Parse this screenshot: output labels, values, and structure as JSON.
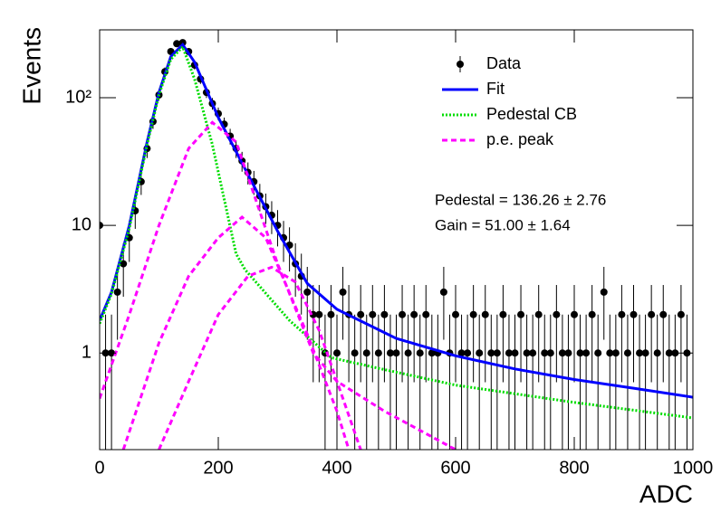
{
  "chart_data": {
    "type": "scatter",
    "x_label": "ADC",
    "y_label": "Events",
    "log_y": true,
    "xlim": [
      0,
      1000
    ],
    "xticks": [
      0,
      200,
      400,
      600,
      800,
      1000
    ],
    "ylim": [
      0.175,
      340
    ],
    "yticks": [
      1,
      10,
      {
        "value": 100,
        "label": "10²"
      }
    ],
    "legend": "top-right",
    "annotations": [
      "Pedestal = 136.26 ± 2.76",
      "Gain = 51.00 ± 1.64"
    ],
    "series": [
      {
        "name": "Data",
        "type": "errorbar",
        "color": "#000000",
        "x": [
          0,
          10,
          20,
          30,
          40,
          50,
          60,
          70,
          80,
          90,
          100,
          110,
          120,
          130,
          140,
          150,
          160,
          170,
          180,
          190,
          200,
          210,
          220,
          230,
          240,
          250,
          260,
          270,
          280,
          290,
          300,
          310,
          320,
          330,
          340,
          350,
          360,
          370,
          380,
          390,
          400,
          410,
          420,
          430,
          440,
          450,
          460,
          470,
          480,
          490,
          500,
          510,
          520,
          530,
          540,
          550,
          560,
          570,
          580,
          590,
          600,
          610,
          620,
          630,
          640,
          650,
          660,
          670,
          680,
          690,
          700,
          710,
          720,
          730,
          740,
          750,
          760,
          770,
          780,
          790,
          800,
          810,
          820,
          830,
          840,
          850,
          860,
          870,
          880,
          890,
          900,
          910,
          920,
          930,
          940,
          950,
          960,
          970,
          980,
          990
        ],
        "values": [
          10,
          1,
          1,
          3,
          5,
          8,
          13,
          22,
          40,
          65,
          105,
          160,
          230,
          265,
          270,
          230,
          180,
          140,
          110,
          90,
          75,
          62,
          50,
          40,
          32,
          26,
          22,
          17,
          14,
          12,
          10,
          8,
          7,
          5,
          4,
          3,
          2,
          2,
          1,
          2,
          1,
          3,
          2,
          1,
          2,
          1,
          2,
          1,
          2,
          1,
          1,
          2,
          1,
          2,
          1,
          2,
          1,
          1,
          3,
          1,
          2,
          1,
          1,
          2,
          1,
          2,
          1,
          1,
          2,
          1,
          1,
          2,
          1,
          1,
          2,
          1,
          1,
          2,
          1,
          1,
          2,
          1,
          1,
          2,
          1,
          3,
          1,
          1,
          2,
          1,
          2,
          1,
          1,
          2,
          1,
          2,
          1,
          1,
          2,
          1
        ],
        "errors": [
          3.16,
          1,
          1,
          1.73,
          2.24,
          2.83,
          3.61,
          4.69,
          6.32,
          8.06,
          10.25,
          12.65,
          15.17,
          16.28,
          16.43,
          15.17,
          13.42,
          11.83,
          10.49,
          9.49,
          8.66,
          7.87,
          7.07,
          6.32,
          5.66,
          5.1,
          4.69,
          4.12,
          3.74,
          3.46,
          3.16,
          2.83,
          2.65,
          2.24,
          2,
          1.73,
          1.41,
          1.41,
          1,
          1.41,
          1,
          1.73,
          1.41,
          1,
          1.41,
          1,
          1.41,
          1,
          1.41,
          1,
          1,
          1.41,
          1,
          1.41,
          1,
          1.41,
          1,
          1,
          1.73,
          1,
          1.41,
          1,
          1,
          1.41,
          1,
          1.41,
          1,
          1,
          1.41,
          1,
          1,
          1.41,
          1,
          1,
          1.41,
          1,
          1,
          1.41,
          1,
          1,
          1.41,
          1,
          1,
          1.41,
          1,
          1.73,
          1,
          1,
          1.41,
          1,
          1.41,
          1,
          1,
          1.41,
          1,
          1.41,
          1,
          1,
          1.41,
          1
        ]
      },
      {
        "name": "Fit",
        "type": "line",
        "color": "#0000ff",
        "line_style": "solid",
        "x": [
          0,
          20,
          50,
          80,
          100,
          120,
          140,
          160,
          200,
          250,
          300,
          350,
          400,
          500,
          600,
          700,
          800,
          900,
          1000
        ],
        "values": [
          1.8,
          3,
          10,
          45,
          110,
          210,
          260,
          190,
          70,
          25,
          9,
          3.5,
          2.2,
          1.3,
          0.95,
          0.75,
          0.62,
          0.53,
          0.45
        ]
      },
      {
        "name": "Pedestal CB",
        "type": "line",
        "color": "#00dd00",
        "line_style": "dotted",
        "x": [
          0,
          20,
          50,
          80,
          100,
          120,
          140,
          160,
          190,
          230,
          245,
          320,
          390,
          475,
          600,
          800,
          1000
        ],
        "values": [
          1.7,
          2.9,
          9.5,
          43,
          105,
          200,
          250,
          140,
          43,
          6,
          4.5,
          1.8,
          0.92,
          0.75,
          0.56,
          0.41,
          0.31
        ]
      },
      {
        "name": "p.e. peak",
        "type": "line",
        "color": "#ff00ff",
        "line_style": "dashed",
        "x": [
          0,
          50,
          100,
          150,
          190,
          230,
          300,
          360,
          400,
          480,
          600
        ],
        "values": [
          0.44,
          2,
          10,
          40,
          64,
          45,
          5,
          1,
          0.6,
          0.35,
          0.175
        ]
      },
      {
        "type": "line",
        "color": "#ff00ff",
        "line_style": "dashed",
        "x": [
          40,
          100,
          150,
          200,
          240,
          280,
          350,
          400,
          420
        ],
        "values": [
          0.175,
          1.2,
          4,
          8,
          11.6,
          8,
          1.4,
          0.35,
          0.175
        ]
      },
      {
        "type": "line",
        "color": "#ff00ff",
        "line_style": "dashed",
        "x": [
          100,
          150,
          200,
          250,
          290,
          330,
          370,
          400,
          440
        ],
        "values": [
          0.175,
          0.6,
          2,
          4,
          4.7,
          3.6,
          1.5,
          0.6,
          0.175
        ]
      }
    ]
  }
}
